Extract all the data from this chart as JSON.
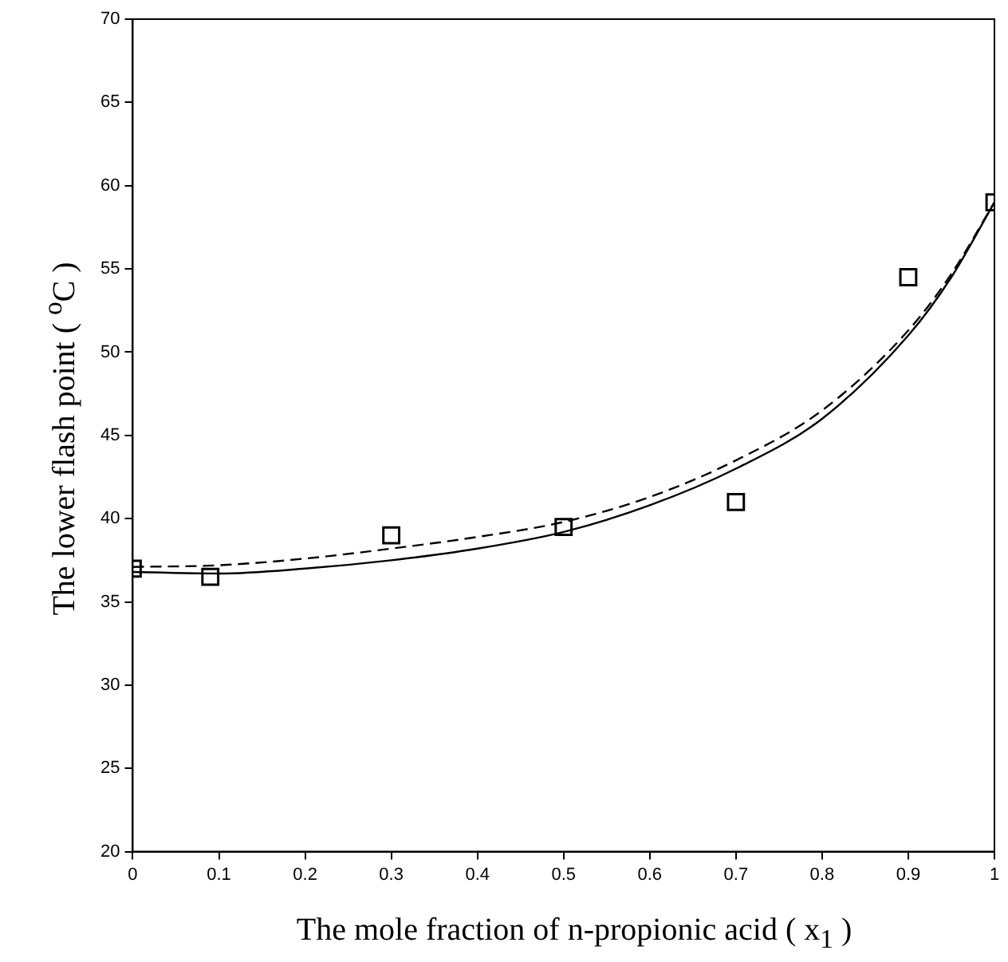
{
  "chart_data": {
    "type": "scatter",
    "xlabel": "The mole fraction of n-propionic acid ( x$_{1}$ )",
    "ylabel": "The lower flash point ( $^{o}$C )",
    "xlim": [
      0,
      1
    ],
    "ylim": [
      20,
      70
    ],
    "xticks": [
      0,
      0.1,
      0.2,
      0.3,
      0.4,
      0.5,
      0.6,
      0.7,
      0.8,
      0.9,
      1
    ],
    "yticks": [
      20,
      25,
      30,
      35,
      40,
      45,
      50,
      55,
      60,
      65,
      70
    ],
    "grid": false,
    "legend": false,
    "series": [
      {
        "type": "scatter",
        "color": "#000000",
        "marker": "square",
        "x": [
          0,
          0.09,
          0.3,
          0.5,
          0.7,
          0.9,
          1.0
        ],
        "values": [
          37,
          36.5,
          39,
          39.5,
          41,
          54.5,
          59
        ]
      },
      {
        "type": "line",
        "color": "#000000",
        "marker": "none",
        "line_style": "solid",
        "x": [
          0,
          0.1,
          0.2,
          0.3,
          0.4,
          0.5,
          0.6,
          0.7,
          0.8,
          0.9,
          0.95,
          1.0
        ],
        "values": [
          36.8,
          36.7,
          37,
          37.5,
          38.2,
          39.2,
          40.8,
          43,
          46,
          51,
          54.5,
          59
        ]
      },
      {
        "type": "line",
        "color": "#000000",
        "marker": "none",
        "line_style": "dashed",
        "x": [
          0,
          0.1,
          0.2,
          0.3,
          0.4,
          0.5,
          0.6,
          0.7,
          0.8,
          0.9,
          0.95,
          1.0
        ],
        "values": [
          37.1,
          37.2,
          37.6,
          38.2,
          38.9,
          39.8,
          41.3,
          43.5,
          46.5,
          51.3,
          54.7,
          59
        ]
      }
    ]
  }
}
